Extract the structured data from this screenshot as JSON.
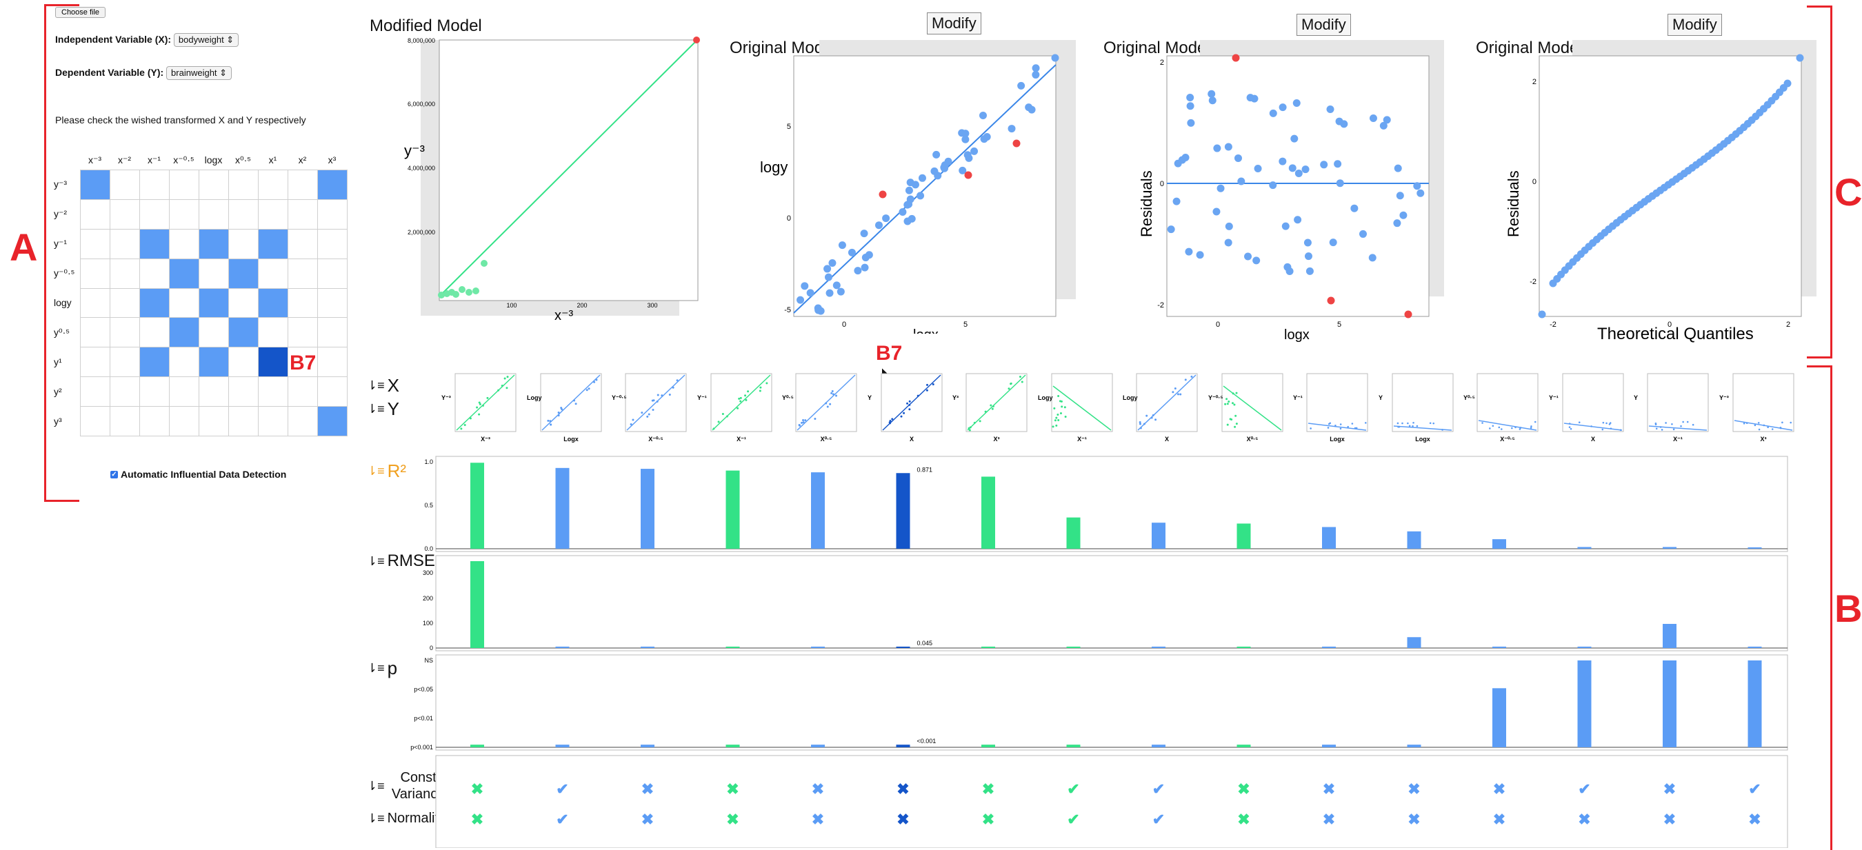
{
  "controls": {
    "choose_file": "Choose file",
    "x_label": "Independent Variable (X):",
    "x_value": "bodyweight ⇕",
    "y_label": "Dependent Variable (Y):",
    "y_value": "brainweight ⇕",
    "instruction": "Please check the wished transformed X and Y respectively",
    "auto_detect": "Automatic Influential Data Detection"
  },
  "matrix": {
    "cols": [
      "x⁻³",
      "x⁻²",
      "x⁻¹",
      "x⁻⁰·⁵",
      "logx",
      "x⁰·⁵",
      "x¹",
      "x²",
      "x³"
    ],
    "rows": [
      "y⁻³",
      "y⁻²",
      "y⁻¹",
      "y⁻⁰·⁵",
      "logy",
      "y⁰·⁵",
      "y¹",
      "y²",
      "y³"
    ],
    "cells": [
      [
        1,
        0,
        0,
        0,
        0,
        0,
        0,
        0,
        1
      ],
      [
        0,
        0,
        0,
        0,
        0,
        0,
        0,
        0,
        0
      ],
      [
        0,
        0,
        1,
        0,
        1,
        0,
        1,
        0,
        0
      ],
      [
        0,
        0,
        0,
        1,
        0,
        1,
        0,
        0,
        0
      ],
      [
        0,
        0,
        1,
        0,
        1,
        0,
        1,
        0,
        0
      ],
      [
        0,
        0,
        0,
        1,
        0,
        1,
        0,
        0,
        0
      ],
      [
        0,
        0,
        1,
        0,
        1,
        0,
        2,
        0,
        0
      ],
      [
        0,
        0,
        0,
        0,
        0,
        0,
        0,
        0,
        0
      ],
      [
        0,
        0,
        0,
        0,
        0,
        0,
        0,
        0,
        1
      ]
    ],
    "b7_label": "B7"
  },
  "annotations": {
    "a": "A",
    "b": "B",
    "c": "C",
    "b7": "B7"
  },
  "plots": {
    "modified": {
      "title": "Modified Model",
      "ylabel": "y⁻³",
      "xlabel": "x⁻³",
      "yticks": [
        "8,000,000",
        "6,000,000",
        "4,000,000",
        "2,000,000"
      ],
      "xticks": [
        "100",
        "200",
        "300"
      ]
    },
    "original1": {
      "modify": "Modify",
      "title": "Original Model",
      "ylabel": "logy",
      "xlabel": "logx",
      "yticks": [
        "5",
        "0",
        "-5"
      ],
      "xticks": [
        "0",
        "5"
      ]
    },
    "original2": {
      "modify": "Modify",
      "title": "Original Model",
      "ylabel": "Residuals",
      "xlabel": "logx",
      "yticks": [
        "2",
        "0",
        "-2"
      ],
      "xticks": [
        "0",
        "5"
      ]
    },
    "original3": {
      "modify": "Modify",
      "title": "Original Model",
      "ylabel": "Residuals",
      "xlabel": "Theoretical Quantiles",
      "yticks": [
        "2",
        "0",
        "-2"
      ],
      "xticks": [
        "-2",
        "0",
        "2"
      ]
    }
  },
  "sort_labels": {
    "x": "X",
    "y": "Y",
    "r2": "R²",
    "rmse": "RMSE",
    "p": "p",
    "const": "Const Variance",
    "normality": "Normality"
  },
  "thumbs": [
    {
      "y": "Y⁻³",
      "x": "X⁻³",
      "c": "g"
    },
    {
      "y": "Logy",
      "x": "Logx",
      "c": "b"
    },
    {
      "y": "Y⁻⁰·⁵",
      "x": "X⁻⁰·⁵",
      "c": "b"
    },
    {
      "y": "Y⁻¹",
      "x": "X⁻¹",
      "c": "g"
    },
    {
      "y": "Y⁰·⁵",
      "x": "X⁰·⁵",
      "c": "b"
    },
    {
      "y": "Y",
      "x": "X",
      "c": "d"
    },
    {
      "y": "Y³",
      "x": "X³",
      "c": "g"
    },
    {
      "y": "Logy",
      "x": "X⁻¹",
      "c": "g"
    },
    {
      "y": "Logy",
      "x": "X",
      "c": "b"
    },
    {
      "y": "Y⁻⁰·⁵",
      "x": "X⁰·⁵",
      "c": "g"
    },
    {
      "y": "Y⁻¹",
      "x": "Logx",
      "c": "b"
    },
    {
      "y": "Y",
      "x": "Logx",
      "c": "b"
    },
    {
      "y": "Y⁰·⁵",
      "x": "X⁻⁰·⁵",
      "c": "b"
    },
    {
      "y": "Y⁻¹",
      "x": "X",
      "c": "b"
    },
    {
      "y": "Y",
      "x": "X⁻¹",
      "c": "b"
    },
    {
      "y": "Y⁻³",
      "x": "X³",
      "c": "b"
    }
  ],
  "chart_data": [
    {
      "type": "bar",
      "title": "R²",
      "ylim": [
        0,
        1
      ],
      "yticks": [
        "1.0",
        "0.5",
        "0.0"
      ],
      "values": [
        0.99,
        0.93,
        0.92,
        0.9,
        0.88,
        0.871,
        0.83,
        0.36,
        0.3,
        0.29,
        0.25,
        0.2,
        0.11,
        0.02,
        0.02,
        0.01
      ],
      "colors": [
        "g",
        "b",
        "b",
        "g",
        "b",
        "d",
        "g",
        "g",
        "b",
        "g",
        "b",
        "b",
        "b",
        "b",
        "b",
        "b"
      ],
      "value_label": "0.871"
    },
    {
      "type": "bar",
      "title": "RMSE",
      "ylim": [
        0,
        360
      ],
      "yticks": [
        "300",
        "200",
        "100",
        "0"
      ],
      "values": [
        360,
        4,
        4,
        4,
        4,
        4,
        4,
        4,
        4,
        4,
        5,
        45,
        5,
        5,
        100,
        5
      ],
      "colors": [
        "g",
        "b",
        "b",
        "g",
        "b",
        "d",
        "g",
        "g",
        "b",
        "g",
        "b",
        "b",
        "b",
        "b",
        "b",
        "b"
      ],
      "value_label": "0.045"
    },
    {
      "type": "bar",
      "title": "p",
      "yticks": [
        "NS",
        "p<0.05",
        "p<0.01",
        "p<0.001"
      ],
      "values": [
        0.03,
        0.03,
        0.03,
        0.03,
        0.03,
        0.03,
        0.03,
        0.03,
        0.03,
        0.03,
        0.03,
        0.03,
        0.68,
        1.0,
        1.0,
        1.0
      ],
      "colors": [
        "g",
        "b",
        "b",
        "g",
        "b",
        "d",
        "g",
        "g",
        "b",
        "g",
        "b",
        "b",
        "b",
        "b",
        "b",
        "b"
      ],
      "value_label": "<0.001"
    }
  ],
  "checks": {
    "const": [
      "x",
      "v",
      "x",
      "x",
      "x",
      "x",
      "x",
      "v",
      "v",
      "x",
      "x",
      "x",
      "x",
      "v",
      "x",
      "v"
    ],
    "normality": [
      "x",
      "v",
      "x",
      "x",
      "x",
      "x",
      "x",
      "v",
      "v",
      "x",
      "x",
      "x",
      "x",
      "x",
      "x",
      "x"
    ],
    "colors": [
      "g",
      "b",
      "b",
      "g",
      "b",
      "d",
      "g",
      "g",
      "b",
      "g",
      "b",
      "b",
      "b",
      "b",
      "b",
      "b"
    ]
  },
  "colors": {
    "g": "#33e287",
    "b": "#5b9cf5",
    "d": "#1455c9",
    "red": "#e8232a"
  }
}
